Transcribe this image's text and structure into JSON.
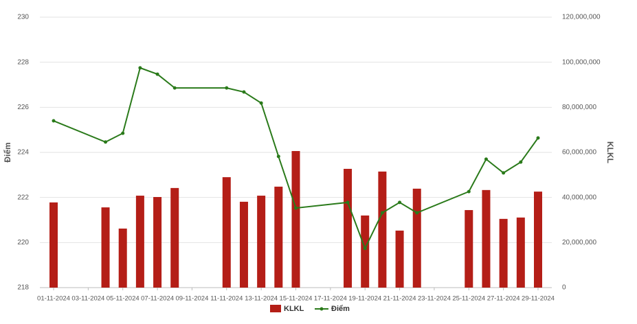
{
  "chart_data": {
    "type": "bar-line",
    "xlim": [
      "01-11-2024",
      "29-11-2024"
    ],
    "xticks": [
      "01-11-2024",
      "03-11-2024",
      "05-11-2024",
      "07-11-2024",
      "09-11-2024",
      "11-11-2024",
      "13-11-2024",
      "15-11-2024",
      "17-11-2024",
      "19-11-2024",
      "21-11-2024",
      "23-11-2024",
      "25-11-2024",
      "27-11-2024",
      "29-11-2024"
    ],
    "x": [
      "01-11-2024",
      "04-11-2024",
      "05-11-2024",
      "06-11-2024",
      "07-11-2024",
      "08-11-2024",
      "11-11-2024",
      "12-11-2024",
      "13-11-2024",
      "14-11-2024",
      "15-11-2024",
      "18-11-2024",
      "19-11-2024",
      "20-11-2024",
      "21-11-2024",
      "22-11-2024",
      "25-11-2024",
      "26-11-2024",
      "27-11-2024",
      "28-11-2024",
      "29-11-2024"
    ],
    "series": [
      {
        "name": "KLKL",
        "type": "bar",
        "axis": "y2",
        "color": "#b41e17",
        "values": [
          37800000,
          35600000,
          26200000,
          40800000,
          40200000,
          44200000,
          49000000,
          38100000,
          40800000,
          44800000,
          60600000,
          52700000,
          32000000,
          51500000,
          25300000,
          43900000,
          34400000,
          43300000,
          30500000,
          31100000,
          42600000
        ]
      },
      {
        "name": "Điểm",
        "type": "line",
        "color": "#2a7a1a",
        "values": [
          225.4,
          224.46,
          224.85,
          227.75,
          227.47,
          226.86,
          226.86,
          226.68,
          226.19,
          223.82,
          221.53,
          221.78,
          219.74,
          221.32,
          221.78,
          221.32,
          222.26,
          223.7,
          223.09,
          223.57,
          224.64
        ]
      }
    ],
    "ylabel": "Điểm",
    "y2label": "KLKL",
    "ylim": [
      218,
      230
    ],
    "yticks": [
      218,
      220,
      222,
      224,
      226,
      228,
      230
    ],
    "y2lim": [
      0,
      120000000
    ],
    "y2ticks": [
      0,
      {
        "value": 20000000,
        "label": "20,000,000"
      },
      {
        "value": 40000000,
        "label": "40,000,000"
      },
      {
        "value": 60000000,
        "label": "60,000,000"
      },
      {
        "value": 80000000,
        "label": "80,000,000"
      },
      {
        "value": 100000000,
        "label": "100,000,000"
      },
      {
        "value": 120000000,
        "label": "120,000,000"
      }
    ],
    "grid": true,
    "legend": "bottom"
  }
}
